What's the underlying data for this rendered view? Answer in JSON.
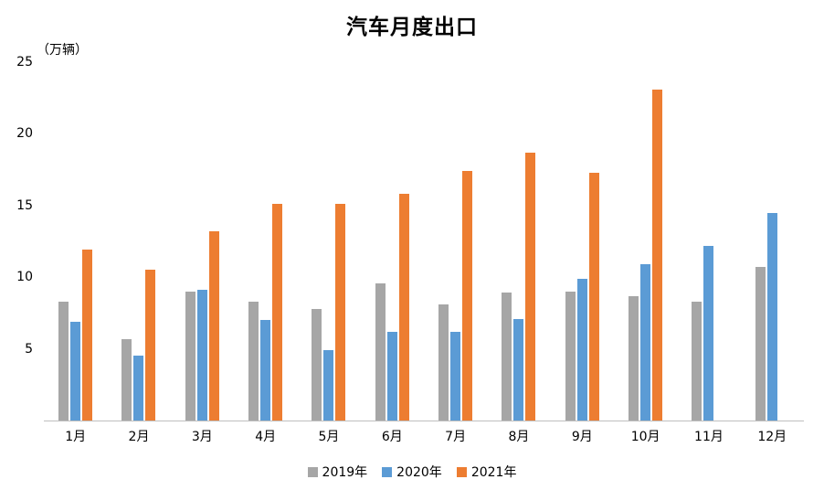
{
  "chart_data": {
    "type": "bar",
    "title": "汽车月度出口",
    "unit_label": "（万辆）",
    "categories": [
      "1月",
      "2月",
      "3月",
      "4月",
      "5月",
      "6月",
      "7月",
      "8月",
      "9月",
      "10月",
      "11月",
      "12月"
    ],
    "series": [
      {
        "name": "2019年",
        "color": "#A6A6A6",
        "values": [
          8.3,
          5.7,
          9.0,
          8.3,
          7.8,
          9.6,
          8.1,
          8.9,
          9.0,
          8.7,
          8.3,
          10.7
        ]
      },
      {
        "name": "2020年",
        "color": "#5B9BD5",
        "values": [
          6.9,
          4.5,
          9.1,
          7.0,
          4.9,
          6.2,
          6.2,
          7.1,
          9.9,
          10.9,
          12.2,
          14.5
        ]
      },
      {
        "name": "2021年",
        "color": "#ED7D31",
        "values": [
          11.9,
          10.5,
          13.2,
          15.1,
          15.1,
          15.8,
          17.4,
          18.7,
          17.3,
          23.1,
          null,
          null
        ]
      }
    ],
    "ylim": [
      0,
      25
    ],
    "yticks": [
      5,
      10,
      15,
      20,
      25
    ],
    "grid": false,
    "legend_position": "bottom",
    "axis_line_color": "#bfbfbf"
  }
}
